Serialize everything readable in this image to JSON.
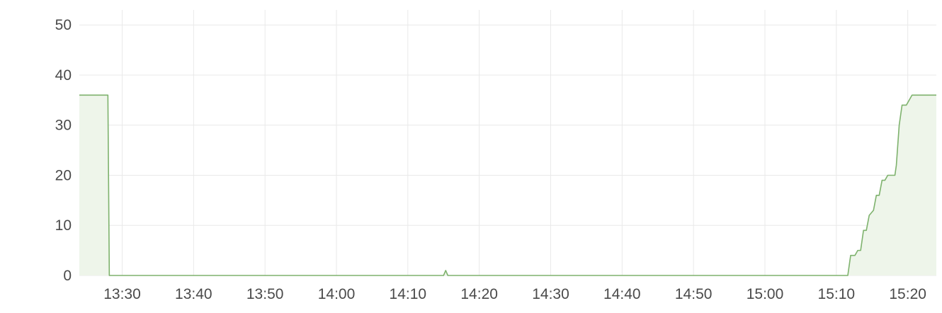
{
  "chart_data": {
    "type": "area",
    "title": "",
    "xlabel": "",
    "ylabel": "",
    "ylim": [
      0,
      53
    ],
    "yticks": [
      0,
      10,
      20,
      30,
      40,
      50
    ],
    "xrange": [
      "13:24",
      "15:24"
    ],
    "xticks": [
      "13:30",
      "13:40",
      "13:50",
      "14:00",
      "14:10",
      "14:20",
      "14:30",
      "14:40",
      "14:50",
      "15:00",
      "15:10",
      "15:20"
    ],
    "grid": true,
    "legend": "none",
    "series": [
      {
        "color": "#7eb26d",
        "fill": "#eef5ea",
        "points": [
          [
            "13:24",
            36
          ],
          [
            "13:28",
            36
          ],
          [
            "13:28.2",
            0
          ],
          [
            "14:15",
            0
          ],
          [
            "14:15.3",
            1
          ],
          [
            "14:15.6",
            0
          ],
          [
            "15:11.6",
            0
          ],
          [
            "15:12",
            4
          ],
          [
            "15:12.6",
            4
          ],
          [
            "15:13",
            5
          ],
          [
            "15:13.4",
            5
          ],
          [
            "15:13.8",
            9
          ],
          [
            "15:14.2",
            9
          ],
          [
            "15:14.6",
            12
          ],
          [
            "15:15.2",
            13
          ],
          [
            "15:15.6",
            16
          ],
          [
            "15:16",
            16
          ],
          [
            "15:16.4",
            19
          ],
          [
            "15:16.8",
            19
          ],
          [
            "15:17.2",
            20
          ],
          [
            "15:18.2",
            20
          ],
          [
            "15:18.4",
            22
          ],
          [
            "15:18.8",
            30
          ],
          [
            "15:19.2",
            34
          ],
          [
            "15:19.8",
            34
          ],
          [
            "15:20.6",
            36
          ],
          [
            "15:24",
            36
          ]
        ]
      }
    ]
  }
}
